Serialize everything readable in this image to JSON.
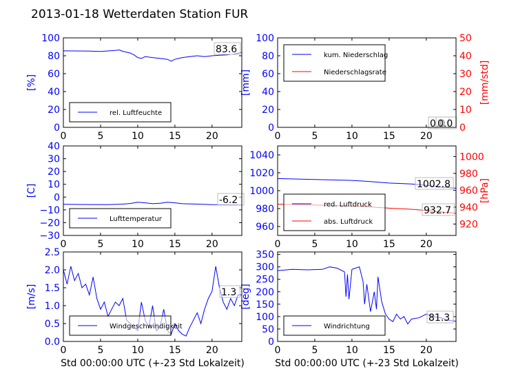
{
  "title": "2013-01-18 Wetterdaten Station FUR",
  "colors": {
    "blue": "#0000ff",
    "red": "#ff0000",
    "black": "#000000",
    "gray": "#bbbbbb"
  },
  "chart_data": [
    {
      "id": "humidity",
      "type": "line",
      "xlim": [
        0,
        24
      ],
      "ylim": [
        0,
        100
      ],
      "xticks": [
        "0",
        "5",
        "10",
        "15",
        "20"
      ],
      "yticks": [
        "0",
        "20",
        "40",
        "60",
        "80",
        "100"
      ],
      "ylabel": "[%]",
      "series": [
        {
          "name": "rel. Luftfeuchte",
          "color": "#0000ff",
          "points": [
            [
              0,
              85.5
            ],
            [
              3,
              85.3
            ],
            [
              5,
              84.8
            ],
            [
              7,
              86
            ],
            [
              7.5,
              86.5
            ],
            [
              8,
              85
            ],
            [
              9,
              83
            ],
            [
              9.5,
              81
            ],
            [
              10,
              78
            ],
            [
              10.5,
              77
            ],
            [
              11,
              79
            ],
            [
              12,
              78
            ],
            [
              13,
              77
            ],
            [
              14,
              76
            ],
            [
              14.5,
              74
            ],
            [
              15,
              76
            ],
            [
              16,
              78
            ],
            [
              17,
              79
            ],
            [
              18,
              80
            ],
            [
              19,
              79
            ],
            [
              20,
              80
            ],
            [
              21,
              80.5
            ],
            [
              22,
              81
            ],
            [
              23,
              82
            ],
            [
              24,
              83.6
            ]
          ]
        }
      ],
      "annotation": "83.6"
    },
    {
      "id": "precip",
      "type": "line",
      "xlim": [
        0,
        24
      ],
      "ylim": [
        0,
        100
      ],
      "ylim_right": [
        0,
        50
      ],
      "xticks": [
        "0",
        "5",
        "10",
        "15",
        "20"
      ],
      "yticks": [
        "0",
        "20",
        "40",
        "60",
        "80",
        "100"
      ],
      "yticks_right": [
        "0",
        "10",
        "20",
        "30",
        "40",
        "50"
      ],
      "ylabel": "[mm]",
      "ylabel_right": "[mm/std]",
      "series": [
        {
          "name": "kum. Niederschlag",
          "color": "#0000ff",
          "axis": "left",
          "points": [
            [
              0,
              0
            ],
            [
              24,
              0
            ]
          ]
        },
        {
          "name": "Niederschlagsrate",
          "color": "#ff0000",
          "axis": "right",
          "points": [
            [
              0,
              0
            ],
            [
              24,
              0
            ]
          ]
        }
      ],
      "annotations": [
        "0.0",
        "0.0"
      ]
    },
    {
      "id": "temperature",
      "type": "line",
      "xlim": [
        0,
        24
      ],
      "ylim": [
        -30,
        40
      ],
      "xticks": [
        "0",
        "5",
        "10",
        "15",
        "20"
      ],
      "yticks": [
        "−30",
        "−20",
        "−10",
        "0",
        "10",
        "20",
        "30",
        "40"
      ],
      "ylabel": "[C]",
      "series": [
        {
          "name": "Lufttemperatur",
          "color": "#0000ff",
          "points": [
            [
              0,
              -5.6
            ],
            [
              3,
              -5.8
            ],
            [
              6,
              -5.9
            ],
            [
              8,
              -5.5
            ],
            [
              9,
              -5
            ],
            [
              10,
              -4
            ],
            [
              11,
              -4.5
            ],
            [
              12,
              -5.2
            ],
            [
              13,
              -4.8
            ],
            [
              14,
              -4
            ],
            [
              15,
              -4.5
            ],
            [
              16,
              -5.2
            ],
            [
              18,
              -5.5
            ],
            [
              20,
              -5.9
            ],
            [
              22,
              -6
            ],
            [
              24,
              -6.2
            ]
          ]
        }
      ],
      "annotation": "-6.2"
    },
    {
      "id": "pressure",
      "type": "line",
      "xlim": [
        0,
        24
      ],
      "ylim": [
        950,
        1050
      ],
      "ylim_right": [
        906.5,
        1012.5
      ],
      "xticks": [
        "0",
        "5",
        "10",
        "15",
        "20"
      ],
      "yticks": [
        "960",
        "980",
        "1000",
        "1020",
        "1040"
      ],
      "yticks_right": [
        "920",
        "940",
        "960",
        "980",
        "1000"
      ],
      "ylabel_right": "[hPa]",
      "series": [
        {
          "name": "red. Luftdruck",
          "color": "#0000ff",
          "axis": "left",
          "points": [
            [
              0,
              1013.5
            ],
            [
              5,
              1012.5
            ],
            [
              10,
              1011.5
            ],
            [
              12,
              1010.5
            ],
            [
              15,
              1008.5
            ],
            [
              18,
              1007.5
            ],
            [
              20,
              1006
            ],
            [
              22,
              1004
            ],
            [
              24,
              1002.8
            ]
          ]
        },
        {
          "name": "abs. Luftdruck",
          "color": "#ff0000",
          "axis": "right",
          "points": [
            [
              0,
              943.5
            ],
            [
              5,
              942.5
            ],
            [
              10,
              941.3
            ],
            [
              12,
              940.5
            ],
            [
              15,
              938.8
            ],
            [
              18,
              937.5
            ],
            [
              20,
              936
            ],
            [
              22,
              934.5
            ],
            [
              24,
              932.7
            ]
          ]
        }
      ],
      "annotations": [
        "1002.8",
        "932.7"
      ]
    },
    {
      "id": "windspeed",
      "type": "line",
      "xlim": [
        0,
        24
      ],
      "ylim": [
        0,
        2.5
      ],
      "xticks": [
        "0",
        "5",
        "10",
        "15",
        "20"
      ],
      "yticks": [
        "0.0",
        "0.5",
        "1.0",
        "1.5",
        "2.0",
        "2.5"
      ],
      "ylabel": "[m/s]",
      "xlabel": "Std 00:00:00 UTC (+-23 Std Lokalzeit)",
      "series": [
        {
          "name": "Windgeschwindigkeit",
          "color": "#0000ff",
          "points": [
            [
              0,
              2.0
            ],
            [
              0.5,
              1.6
            ],
            [
              1,
              2.1
            ],
            [
              1.5,
              1.7
            ],
            [
              2,
              1.9
            ],
            [
              2.5,
              1.5
            ],
            [
              3,
              1.6
            ],
            [
              3.5,
              1.3
            ],
            [
              4,
              1.8
            ],
            [
              4.5,
              1.2
            ],
            [
              5,
              0.9
            ],
            [
              5.5,
              1.1
            ],
            [
              6,
              0.7
            ],
            [
              6.5,
              0.9
            ],
            [
              7,
              1.1
            ],
            [
              7.5,
              1.0
            ],
            [
              8,
              1.2
            ],
            [
              8.5,
              0.6
            ],
            [
              9,
              0.5
            ],
            [
              9.5,
              0.4
            ],
            [
              10,
              0.3
            ],
            [
              10.5,
              1.1
            ],
            [
              11,
              0.6
            ],
            [
              11.5,
              0.4
            ],
            [
              12,
              1.0
            ],
            [
              12.5,
              0.3
            ],
            [
              13,
              0.4
            ],
            [
              13.5,
              0.9
            ],
            [
              14,
              0.3
            ],
            [
              14.5,
              0.2
            ],
            [
              15,
              0.5
            ],
            [
              15.5,
              0.3
            ],
            [
              16,
              0.2
            ],
            [
              16.5,
              0.15
            ],
            [
              17,
              0.4
            ],
            [
              17.5,
              0.6
            ],
            [
              18,
              0.8
            ],
            [
              18.5,
              0.5
            ],
            [
              19,
              0.9
            ],
            [
              19.5,
              1.2
            ],
            [
              20,
              1.4
            ],
            [
              20.5,
              2.1
            ],
            [
              21,
              1.5
            ],
            [
              21.5,
              1.1
            ],
            [
              22,
              0.9
            ],
            [
              22.5,
              1.2
            ],
            [
              23,
              1.0
            ],
            [
              23.5,
              1.3
            ],
            [
              24,
              1.3
            ]
          ]
        }
      ],
      "annotation": "1.3"
    },
    {
      "id": "winddir",
      "type": "line",
      "xlim": [
        0,
        24
      ],
      "ylim": [
        0,
        360
      ],
      "xticks": [
        "0",
        "5",
        "10",
        "15",
        "20"
      ],
      "yticks": [
        "0",
        "50",
        "100",
        "150",
        "200",
        "250",
        "300",
        "350"
      ],
      "ylabel": "[deg]",
      "xlabel": "Std 00:00:00 UTC (+-23 Std Lokalzeit)",
      "series": [
        {
          "name": "Windrichtung",
          "color": "#0000ff",
          "points": [
            [
              0,
              285
            ],
            [
              2,
              290
            ],
            [
              4,
              288
            ],
            [
              6,
              290
            ],
            [
              7,
              300
            ],
            [
              8,
              295
            ],
            [
              9,
              280
            ],
            [
              9.2,
              180
            ],
            [
              9.4,
              270
            ],
            [
              9.6,
              170
            ],
            [
              10,
              290
            ],
            [
              11,
              300
            ],
            [
              11.5,
              240
            ],
            [
              11.7,
              150
            ],
            [
              12,
              230
            ],
            [
              12.5,
              120
            ],
            [
              13,
              200
            ],
            [
              13.3,
              130
            ],
            [
              13.5,
              260
            ],
            [
              14,
              160
            ],
            [
              14.5,
              110
            ],
            [
              15,
              90
            ],
            [
              15.5,
              80
            ],
            [
              16,
              110
            ],
            [
              16.5,
              90
            ],
            [
              17,
              100
            ],
            [
              17.5,
              70
            ],
            [
              18,
              90
            ],
            [
              19,
              95
            ],
            [
              20,
              110
            ],
            [
              21,
              100
            ],
            [
              22,
              95
            ],
            [
              23,
              85
            ],
            [
              24,
              81.3
            ]
          ]
        }
      ],
      "annotation": "81.3"
    }
  ]
}
